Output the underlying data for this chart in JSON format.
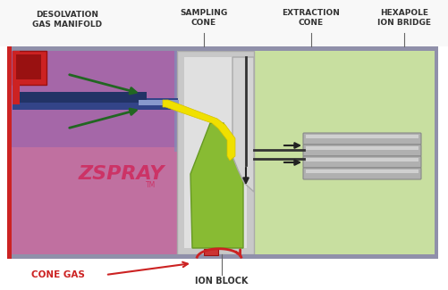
{
  "bg": "#ffffff",
  "colors": {
    "pink": "#c070a0",
    "purple": "#9060b0",
    "lt_green": "#c8dfa0",
    "dk_green_cone": "#88bb33",
    "yellow": "#f0e000",
    "yellow_edge": "#d4c000",
    "blue_dark": "#334488",
    "blue_med": "#223366",
    "blue_lt": "#8899cc",
    "blue_upper": "#8090b8",
    "red": "#cc2222",
    "red_dk": "#991111",
    "dk_green": "#226622",
    "gray_panel": "#c8c8c8",
    "gray_lt": "#e0e0e0",
    "gray_rod": "#b0b0b0",
    "gray_rod_lt": "#d0d0d0",
    "gray_border": "#9090aa",
    "gray_extr": "#d4d4d4",
    "black": "#222222",
    "cone_edge": "#669922"
  },
  "labels": {
    "desolv": "DESOLVATION\nGAS MANIFOLD",
    "sampling": "SAMPLING\nCONE",
    "extraction": "EXTRACTION\nCONE",
    "hexapole": "HEXAPOLE\nION BRIDGE",
    "zspray": "ZSPRAY",
    "tm": "TM",
    "cone_gas": "CONE GAS",
    "ion_block": "ION BLOCK"
  },
  "fontsizes": {
    "label": 6.5,
    "zspray": 16,
    "tm": 5.5,
    "cone_gas": 7.5,
    "ion_block": 7
  }
}
